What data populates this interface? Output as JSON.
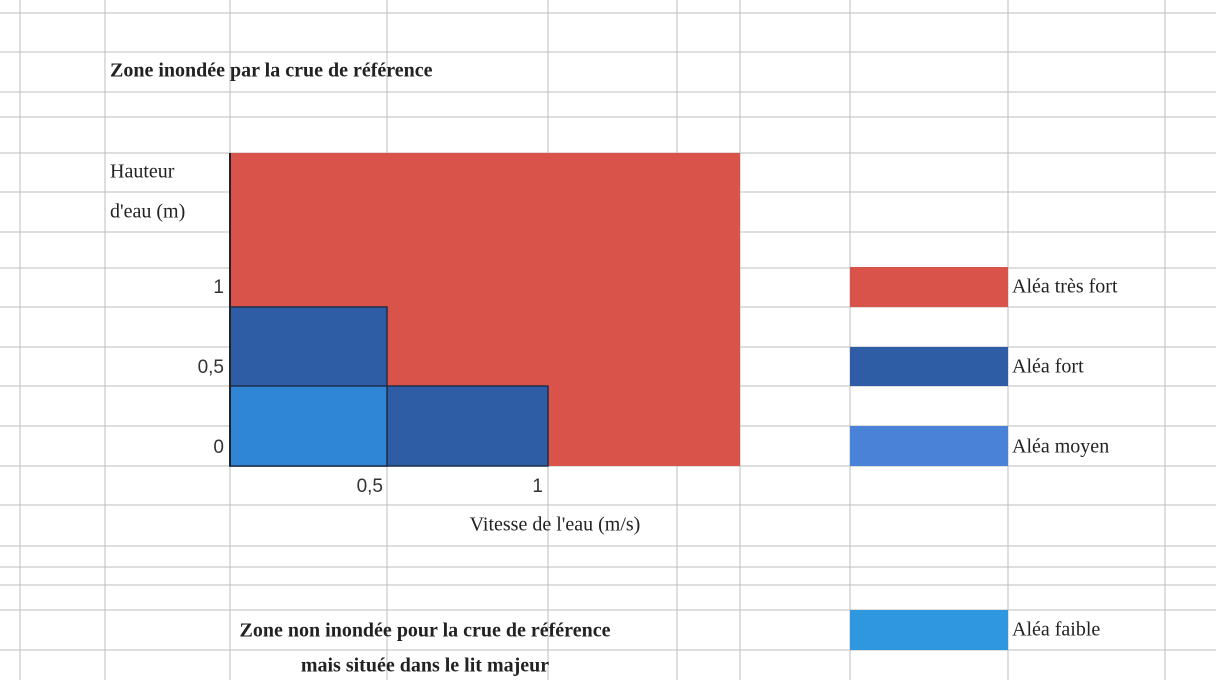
{
  "sheet": {
    "title": "Zone inondée par la crue de référence",
    "y_label": [
      "Hauteur",
      "d'eau (m)"
    ],
    "y_ticks": [
      "1",
      "0,5",
      "0"
    ],
    "x_ticks": [
      "0,5",
      "1"
    ],
    "x_label": "Vitesse de l'eau (m/s)",
    "legend": [
      "Aléa très fort",
      "Aléa fort",
      "Aléa moyen",
      "Aléa faible"
    ],
    "footer": [
      "Zone non inondée pour la crue de référence",
      "mais située dans le lit majeur"
    ]
  }
}
